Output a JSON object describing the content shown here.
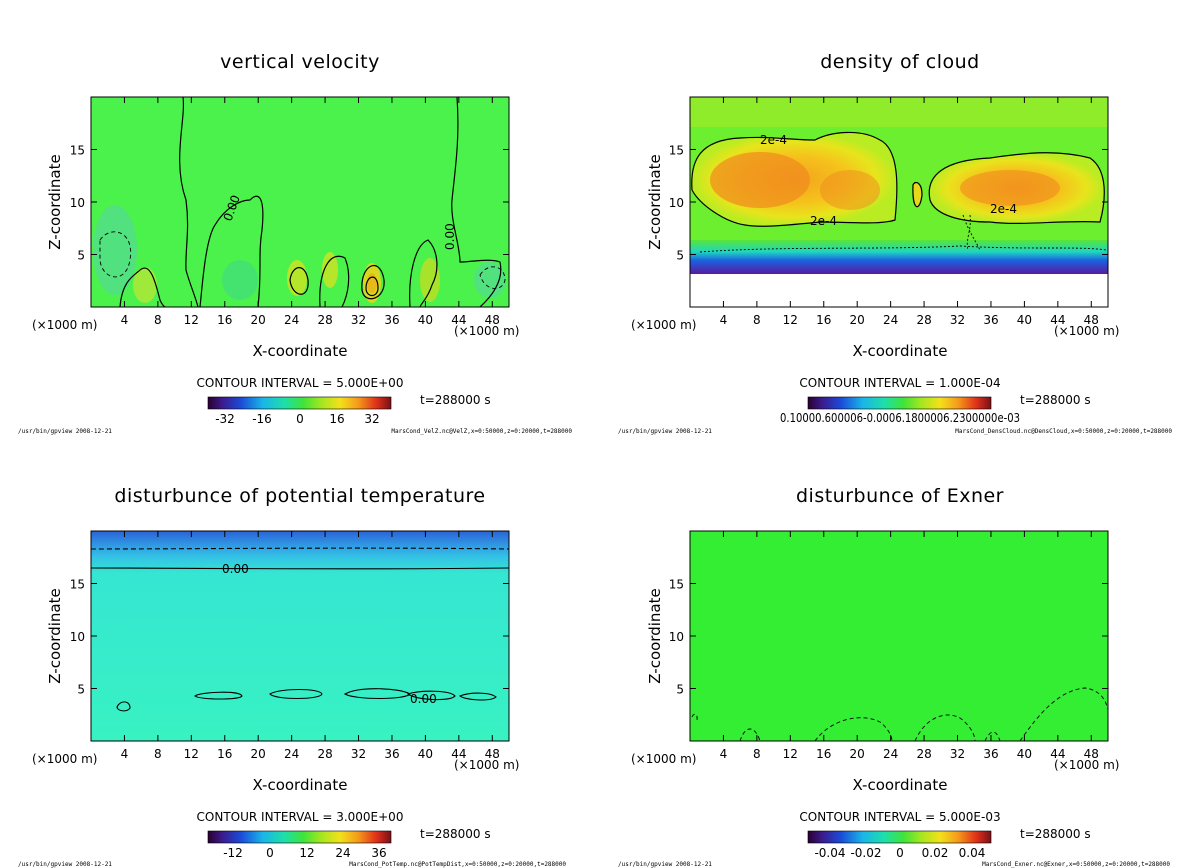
{
  "chart_data": [
    {
      "type": "heatmap",
      "title": "vertical velocity",
      "xlabel": "X-coordinate",
      "ylabel": "Z-coordinate",
      "x_unit_left": "(×1000 m)",
      "x_unit_right": "(×1000 m)",
      "xlim": [
        0,
        50
      ],
      "ylim": [
        0,
        20
      ],
      "xticks": [
        4,
        8,
        12,
        16,
        20,
        24,
        28,
        32,
        36,
        40,
        44,
        48
      ],
      "yticks": [
        5,
        10,
        15
      ],
      "contour_interval": "CONTOUR INTERVAL = 5.000E+00",
      "time_label": "t=288000 s",
      "colorbar_ticks": [
        "-32",
        "-16",
        "0",
        "16",
        "32"
      ],
      "contour_labels": [
        "0.00",
        "0.00"
      ],
      "footer_left": "/usr/bin/gpview   2008-12-21",
      "footer_right": "MarsCond_VelZ.nc@VelZ,x=0:50000,z=0:20000,t=288000",
      "background_color": "#4cf24c"
    },
    {
      "type": "heatmap",
      "title": "density of cloud",
      "xlabel": "X-coordinate",
      "ylabel": "Z-coordinate",
      "x_unit_left": "(×1000 m)",
      "x_unit_right": "(×1000 m)",
      "xlim": [
        0,
        50
      ],
      "ylim": [
        0,
        20
      ],
      "xticks": [
        4,
        8,
        12,
        16,
        20,
        24,
        28,
        32,
        36,
        40,
        44,
        48
      ],
      "yticks": [
        5,
        10,
        15
      ],
      "contour_interval": "CONTOUR INTERVAL = 1.000E-04",
      "time_label": "t=288000 s",
      "colorbar_ticks_text": "0.10000.600006-0.0006.1800006.2300000e-03",
      "contour_labels": [
        "2e-4",
        "2e-4",
        "2e-4"
      ],
      "footer_left": "/usr/bin/gpview   2008-12-21",
      "footer_right": "MarsCond_DensCloud.nc@DensCloud,x=0:50000,z=0:20000,t=288000",
      "background_color": "#6cef2e"
    },
    {
      "type": "heatmap",
      "title": "disturbunce of potential temperature",
      "xlabel": "X-coordinate",
      "ylabel": "Z-coordinate",
      "x_unit_left": "(×1000 m)",
      "x_unit_right": "(×1000 m)",
      "xlim": [
        0,
        50
      ],
      "ylim": [
        0,
        20
      ],
      "xticks": [
        4,
        8,
        12,
        16,
        20,
        24,
        28,
        32,
        36,
        40,
        44,
        48
      ],
      "yticks": [
        5,
        10,
        15
      ],
      "contour_interval": "CONTOUR INTERVAL = 3.000E+00",
      "time_label": "t=288000 s",
      "colorbar_ticks": [
        "-12",
        "0",
        "12",
        "24",
        "36"
      ],
      "contour_labels": [
        "0.00",
        "0.00"
      ],
      "footer_left": "/usr/bin/gpview   2008-12-21",
      "footer_right": "MarsCond_PotTemp.nc@PotTempDist,x=0:50000,z=0:20000,t=288000",
      "background_color": "#33f5c8"
    },
    {
      "type": "heatmap",
      "title": "disturbunce of Exner",
      "xlabel": "X-coordinate",
      "ylabel": "Z-coordinate",
      "x_unit_left": "(×1000 m)",
      "x_unit_right": "(×1000 m)",
      "xlim": [
        0,
        50
      ],
      "ylim": [
        0,
        20
      ],
      "xticks": [
        4,
        8,
        12,
        16,
        20,
        24,
        28,
        32,
        36,
        40,
        44,
        48
      ],
      "yticks": [
        5,
        10,
        15
      ],
      "contour_interval": "CONTOUR INTERVAL = 5.000E-03",
      "time_label": "t=288000 s",
      "colorbar_ticks": [
        "-0.04",
        "-0.02",
        "0",
        "0.02",
        "0.04"
      ],
      "contour_labels": [],
      "footer_left": "/usr/bin/gpview   2008-12-21",
      "footer_right": "MarsCond_Exner.nc@Exner,x=0:50000,z=0:20000,t=288000",
      "background_color": "#33ee33"
    }
  ]
}
